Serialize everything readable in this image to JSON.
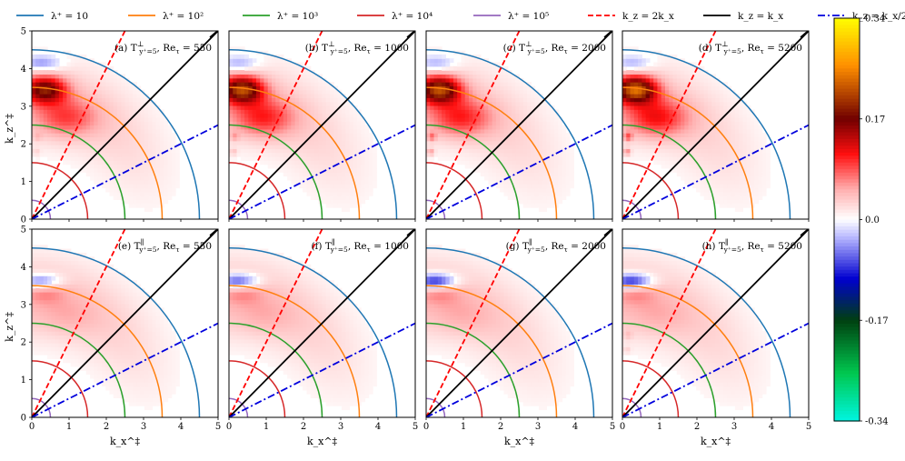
{
  "chart_data": {
    "type": "heatmap",
    "figure_rows": 2,
    "figure_cols": 4,
    "xlabel": "k_x^‡",
    "ylabel": "k_z^‡",
    "xlim": [
      0,
      5
    ],
    "ylim": [
      0,
      5
    ],
    "xticks": [
      "0",
      "1",
      "2",
      "3",
      "4",
      "5"
    ],
    "yticks": [
      "0",
      "1",
      "2",
      "3",
      "4",
      "5"
    ],
    "legend": [
      {
        "label": "λ⁺ = 10",
        "style": "solid",
        "color": "#1f77b4"
      },
      {
        "label": "λ⁺ = 10²",
        "style": "solid",
        "color": "#ff7f0e"
      },
      {
        "label": "λ⁺ = 10³",
        "style": "solid",
        "color": "#2ca02c"
      },
      {
        "label": "λ⁺ = 10⁴",
        "style": "solid",
        "color": "#d62728"
      },
      {
        "label": "λ⁺ = 10⁵",
        "style": "solid",
        "color": "#9467bd"
      },
      {
        "label": "k_z = 2k_x",
        "style": "dashed",
        "color": "#ff0000"
      },
      {
        "label": "k_z = k_x",
        "style": "solid",
        "color": "#000000"
      },
      {
        "label": "k_z = k_x/2",
        "style": "dashdot",
        "color": "#0000dd"
      }
    ],
    "arcs": [
      {
        "lambda": "10",
        "radius": 4.5,
        "color": "#1f77b4"
      },
      {
        "lambda": "10^2",
        "radius": 3.5,
        "color": "#ff7f0e"
      },
      {
        "lambda": "10^3",
        "radius": 2.5,
        "color": "#2ca02c"
      },
      {
        "lambda": "10^4",
        "radius": 1.5,
        "color": "#d62728"
      },
      {
        "lambda": "10^5",
        "radius": 0.5,
        "color": "#9467bd"
      }
    ],
    "lines": [
      {
        "name": "k_z = 2k_x",
        "slope": 2.0,
        "color": "#ff0000",
        "dash": "dashed"
      },
      {
        "name": "k_z = k_x",
        "slope": 1.0,
        "color": "#000000",
        "dash": "solid"
      },
      {
        "name": "k_z = k_x/2",
        "slope": 0.5,
        "color": "#0000dd",
        "dash": "dashdot"
      }
    ],
    "colorbar": {
      "min": -0.34,
      "max": 0.34,
      "ticks": [
        "0.34",
        "0.17",
        "0.0",
        "-0.17",
        "-0.34"
      ],
      "tick_values": [
        0.34,
        0.17,
        0.0,
        -0.17,
        -0.34
      ],
      "stops": [
        {
          "v": -0.34,
          "c": "#00f5e0"
        },
        {
          "v": -0.26,
          "c": "#00c850"
        },
        {
          "v": -0.17,
          "c": "#004010"
        },
        {
          "v": -0.1,
          "c": "#0000d0"
        },
        {
          "v": -0.03,
          "c": "#b8b8ff"
        },
        {
          "v": 0.0,
          "c": "#ffffff"
        },
        {
          "v": 0.05,
          "c": "#ffb0b0"
        },
        {
          "v": 0.11,
          "c": "#ff1010"
        },
        {
          "v": 0.17,
          "c": "#700000"
        },
        {
          "v": 0.26,
          "c": "#ff9000"
        },
        {
          "v": 0.34,
          "c": "#ffff00"
        }
      ]
    },
    "panels": [
      {
        "id": "a",
        "label": "(a)",
        "component": "⊥",
        "Re_tau": "550",
        "peak_pos": 0.15,
        "neg_peak": -0.06,
        "speckle": 0.02
      },
      {
        "id": "b",
        "label": "(b)",
        "component": "⊥",
        "Re_tau": "1000",
        "peak_pos": 0.18,
        "neg_peak": -0.05,
        "speckle": 0.03
      },
      {
        "id": "c",
        "label": "(c)",
        "component": "⊥",
        "Re_tau": "2000",
        "peak_pos": 0.18,
        "neg_peak": -0.05,
        "speckle": 0.05
      },
      {
        "id": "d",
        "label": "(d)",
        "component": "⊥",
        "Re_tau": "5200",
        "peak_pos": 0.2,
        "neg_peak": -0.05,
        "speckle": 0.06
      },
      {
        "id": "e",
        "label": "(e)",
        "component": "∥",
        "Re_tau": "550",
        "peak_pos": 0.04,
        "neg_peak": -0.1,
        "speckle": 0.0
      },
      {
        "id": "f",
        "label": "(f)",
        "component": "∥",
        "Re_tau": "1000",
        "peak_pos": 0.04,
        "neg_peak": -0.12,
        "speckle": 0.0
      },
      {
        "id": "g",
        "label": "(g)",
        "component": "∥",
        "Re_tau": "2000",
        "peak_pos": 0.04,
        "neg_peak": -0.14,
        "speckle": 0.0
      },
      {
        "id": "h",
        "label": "(h)",
        "component": "∥",
        "Re_tau": "5200",
        "peak_pos": 0.04,
        "neg_peak": -0.14,
        "speckle": 0.02
      }
    ]
  }
}
